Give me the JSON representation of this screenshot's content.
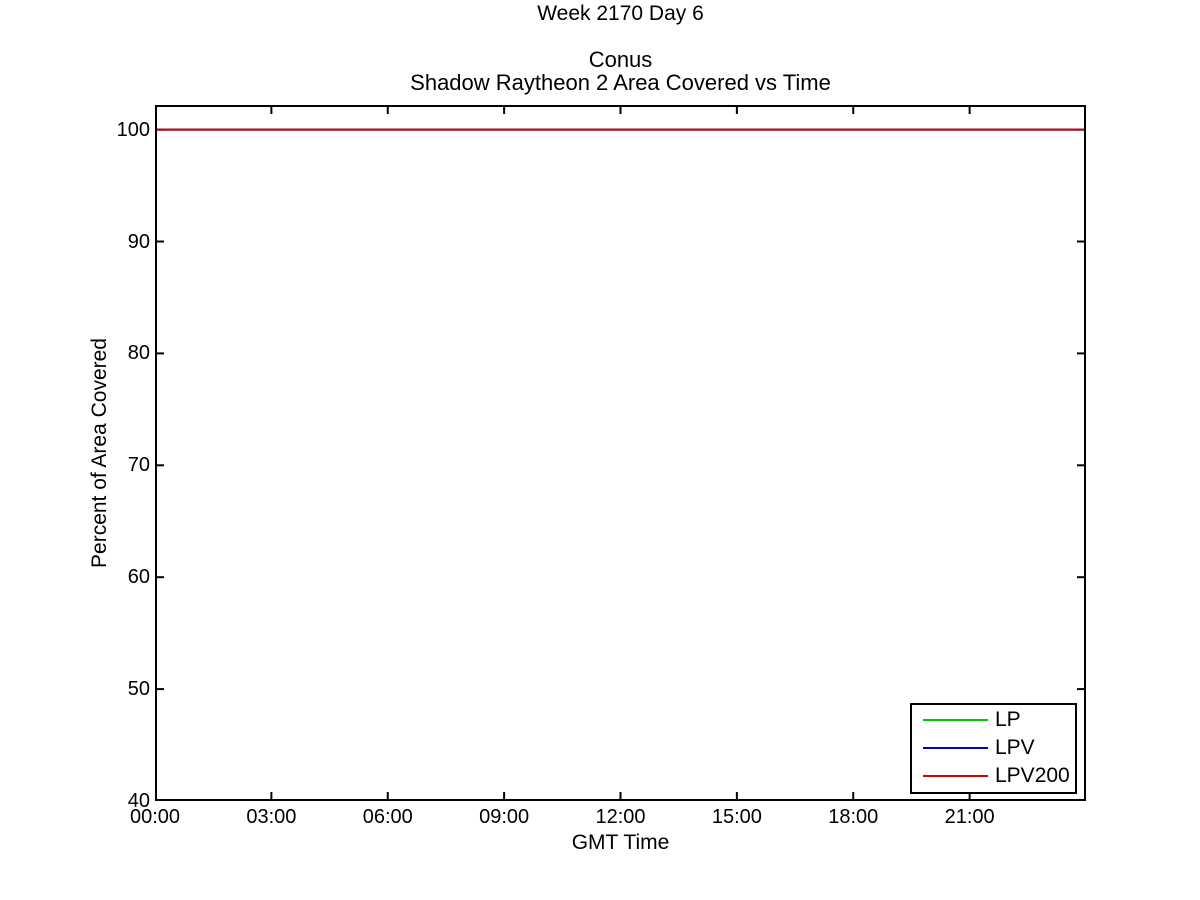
{
  "figure": {
    "suptitle": "Week 2170 Day 6",
    "background": "#ffffff"
  },
  "chart_data": {
    "type": "line",
    "title_lines": [
      "Conus",
      "Shadow Raytheon 2 Area Covered vs Time"
    ],
    "x_axis": {
      "label": "GMT Time",
      "range_hours": [
        0,
        24
      ],
      "ticks": [
        {
          "h": 0,
          "label": "00:00"
        },
        {
          "h": 3,
          "label": "03:00"
        },
        {
          "h": 6,
          "label": "06:00"
        },
        {
          "h": 9,
          "label": "09:00"
        },
        {
          "h": 12,
          "label": "12:00"
        },
        {
          "h": 15,
          "label": "15:00"
        },
        {
          "h": 18,
          "label": "18:00"
        },
        {
          "h": 21,
          "label": "21:00"
        },
        {
          "h": 24,
          "label": ""
        }
      ]
    },
    "y_axis": {
      "label": "Percent of Area Covered",
      "range": [
        40,
        102.2
      ],
      "ticks": [
        40,
        50,
        60,
        70,
        80,
        90,
        100
      ]
    },
    "grid": false,
    "axis_color": "#000000",
    "series": [
      {
        "name": "LP",
        "color": "#00cc00",
        "points": [
          [
            0,
            100
          ],
          [
            24,
            100
          ]
        ]
      },
      {
        "name": "LPV",
        "color": "#0000cc",
        "points": [
          [
            0,
            100
          ],
          [
            24,
            100
          ]
        ]
      },
      {
        "name": "LPV200",
        "color": "#dd0000",
        "points": [
          [
            0,
            100
          ],
          [
            24,
            100
          ]
        ]
      }
    ],
    "legend": {
      "position": "bottom-right",
      "entries": [
        "LP",
        "LPV",
        "LPV200"
      ]
    }
  }
}
